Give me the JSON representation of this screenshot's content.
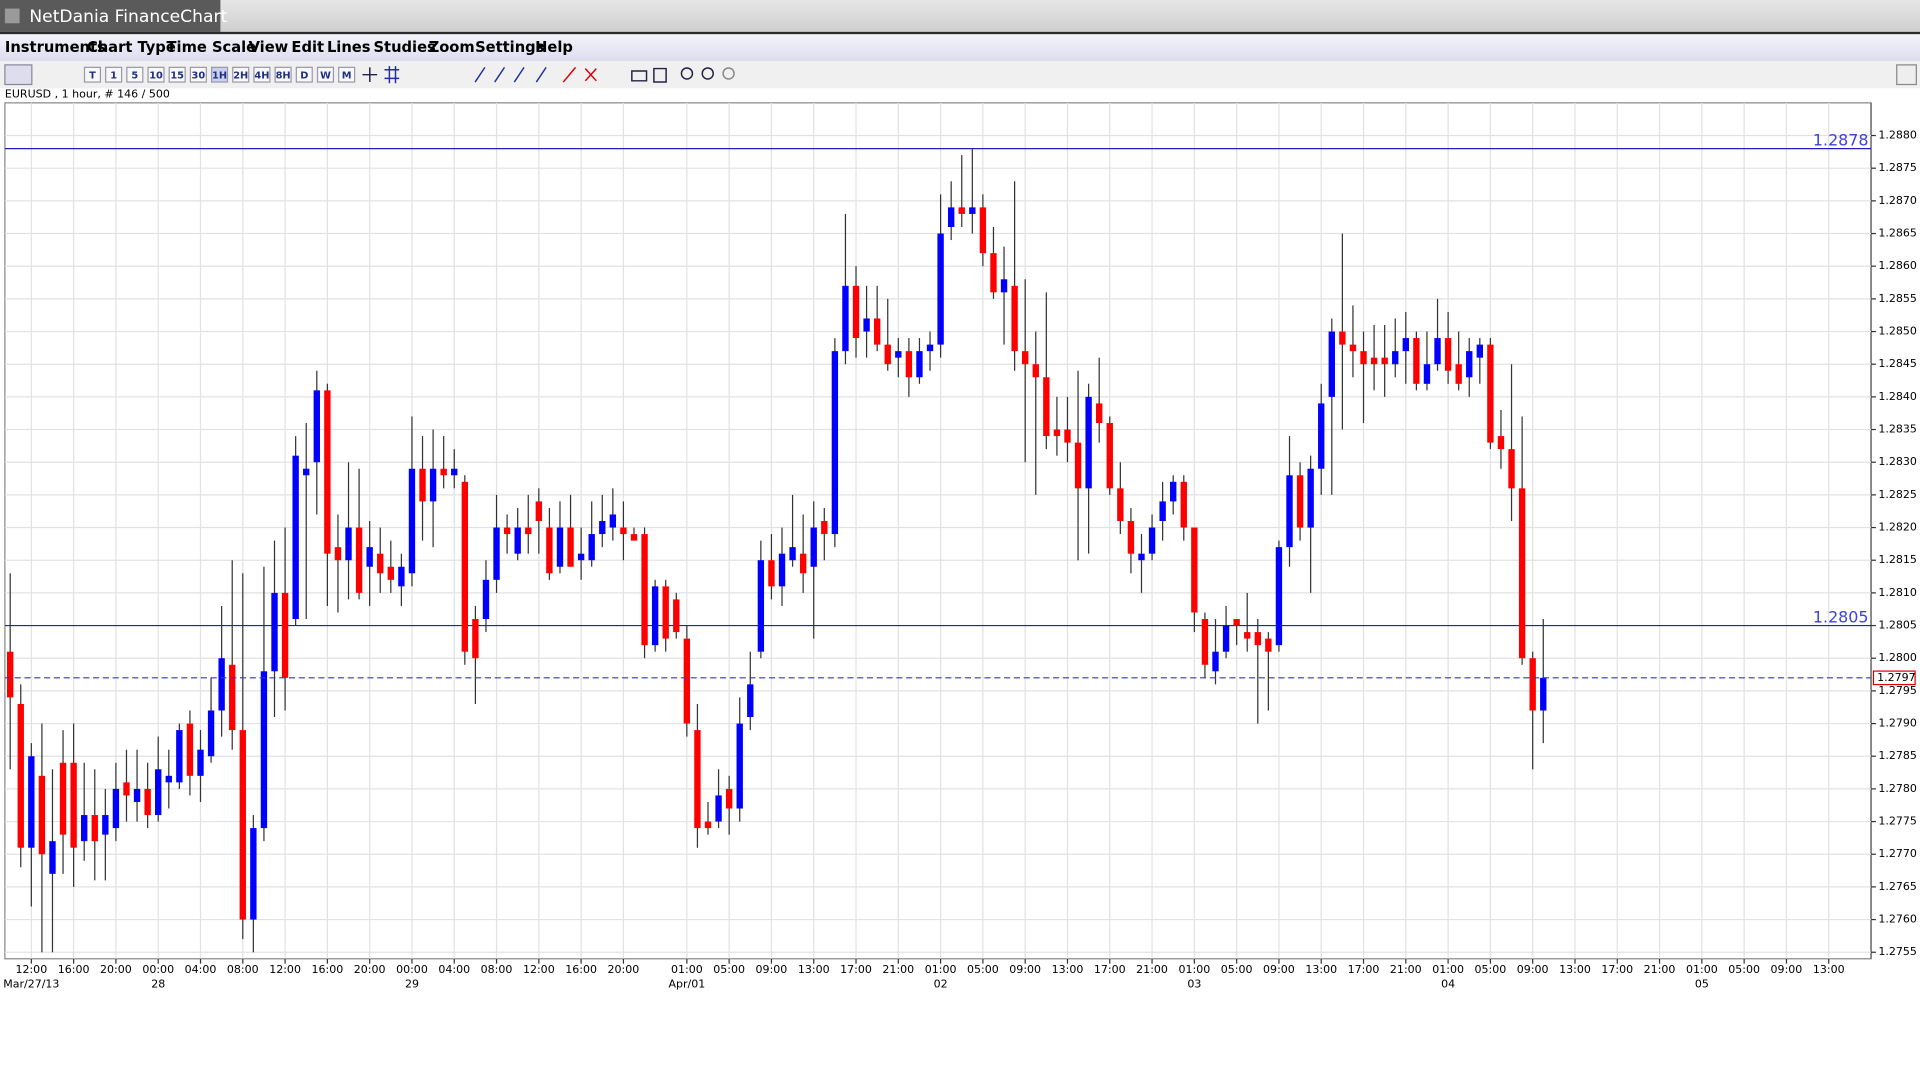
{
  "window": {
    "title": "NetDania FinanceChart"
  },
  "menu": [
    "Instruments",
    "Chart Type",
    "Time Scale",
    "View",
    "Edit",
    "Lines",
    "Studies",
    "Zoom",
    "Settings",
    "Help"
  ],
  "toolbar": [
    "T",
    "1",
    "5",
    "10",
    "15",
    "30",
    "1H",
    "2H",
    "4H",
    "8H",
    "D",
    "W",
    "M"
  ],
  "chart_data": {
    "type": "candlestick",
    "title": "EURUSD , 1 hour, # 146 / 500",
    "up_color": "#0000ff",
    "down_color": "#ff0000",
    "grid": true,
    "open": [
      1.2801,
      1.2793,
      1.2771,
      1.2782,
      1.2767,
      1.2784,
      1.2784,
      1.2772,
      1.2776,
      1.2773,
      1.2774,
      1.2781,
      1.2778,
      1.278,
      1.2776,
      1.2781,
      1.2781,
      1.279,
      1.2782,
      1.2785,
      1.2792,
      1.2799,
      1.2789,
      1.276,
      1.2774,
      1.2798,
      1.281,
      1.2806,
      1.2828,
      1.283,
      1.2841,
      1.2817,
      1.2815,
      1.282,
      1.2814,
      1.2816,
      1.2814,
      1.2811,
      1.2813,
      1.2829,
      1.2824,
      1.2829,
      1.2828,
      1.2827,
      1.2806,
      1.2806,
      1.2812,
      1.282,
      1.2816,
      1.282,
      1.2824,
      1.282,
      1.2814,
      1.282,
      1.2815,
      1.2815,
      1.2819,
      1.282,
      1.282,
      1.2819,
      1.2819,
      1.2802,
      1.2811,
      1.2809,
      1.2803,
      1.2789,
      1.2775,
      1.2775,
      1.278,
      1.2777,
      1.2791,
      1.2801,
      1.2815,
      1.2811,
      1.2815,
      1.2816,
      1.2814,
      1.2821,
      1.2819,
      1.2847,
      1.2857,
      1.285,
      1.2852,
      1.2848,
      1.2846,
      1.2847,
      1.2843,
      1.2847,
      1.2848,
      1.2866,
      1.2869,
      1.2868,
      1.2869,
      1.2862,
      1.2856,
      1.2857,
      1.2847,
      1.2845,
      1.2843,
      1.2835,
      1.2835,
      1.2833,
      1.2826,
      1.2839,
      1.2836,
      1.2826,
      1.2821,
      1.2815,
      1.2816,
      1.2821,
      1.2824,
      1.2827,
      1.282,
      1.2806,
      1.2798,
      1.2801,
      1.2806,
      1.2804,
      1.2804,
      1.2803,
      1.2802,
      1.2817,
      1.2828,
      1.282,
      1.2829,
      1.284,
      1.285,
      1.2848,
      1.2847,
      1.2846,
      1.2846,
      1.2845,
      1.2847,
      1.2849,
      1.2842,
      1.2845,
      1.2849,
      1.2845,
      1.2843,
      1.2846,
      1.2848,
      1.2834,
      1.2832,
      1.2826,
      1.28,
      1.2792
    ],
    "high": [
      1.2813,
      1.2796,
      1.2787,
      1.279,
      1.2783,
      1.2789,
      1.279,
      1.2784,
      1.2783,
      1.278,
      1.2784,
      1.2786,
      1.2786,
      1.2784,
      1.2788,
      1.2786,
      1.279,
      1.2792,
      1.2789,
      1.2797,
      1.2808,
      1.2815,
      1.2813,
      1.2776,
      1.2814,
      1.2818,
      1.282,
      1.2834,
      1.2836,
      1.2844,
      1.2842,
      1.2822,
      1.283,
      1.2829,
      1.2821,
      1.282,
      1.2818,
      1.2816,
      1.2837,
      1.2834,
      1.2835,
      1.2834,
      1.2832,
      1.2828,
      1.2808,
      1.2815,
      1.2825,
      1.2822,
      1.2823,
      1.2825,
      1.2826,
      1.2823,
      1.2824,
      1.2825,
      1.282,
      1.2824,
      1.2825,
      1.2826,
      1.2824,
      1.282,
      1.282,
      1.2812,
      1.2812,
      1.281,
      1.2805,
      1.2793,
      1.2778,
      1.2783,
      1.2782,
      1.2794,
      1.2801,
      1.2818,
      1.2819,
      1.282,
      1.2825,
      1.2822,
      1.2824,
      1.2823,
      1.2849,
      1.2868,
      1.286,
      1.2857,
      1.2857,
      1.2855,
      1.2849,
      1.2849,
      1.2849,
      1.285,
      1.2871,
      1.2873,
      1.2877,
      1.2878,
      1.2871,
      1.2866,
      1.2863,
      1.2873,
      1.2858,
      1.285,
      1.2856,
      1.284,
      1.284,
      1.2844,
      1.2842,
      1.2846,
      1.2837,
      1.283,
      1.2823,
      1.2819,
      1.2822,
      1.2827,
      1.2828,
      1.2828,
      1.282,
      1.2807,
      1.2806,
      1.2808,
      1.2806,
      1.281,
      1.2806,
      1.2804,
      1.2818,
      1.2834,
      1.283,
      1.2831,
      1.2842,
      1.2852,
      1.2865,
      1.2854,
      1.285,
      1.2851,
      1.2851,
      1.2852,
      1.2853,
      1.285,
      1.285,
      1.2855,
      1.2853,
      1.285,
      1.2849,
      1.2849,
      1.2849,
      1.2838,
      1.2845,
      1.2837,
      1.2801,
      1.2806
    ],
    "low": [
      1.2783,
      1.2768,
      1.2762,
      1.2755,
      1.2755,
      1.2767,
      1.2765,
      1.2769,
      1.2766,
      1.2766,
      1.2772,
      1.2775,
      1.2775,
      1.2774,
      1.2775,
      1.2777,
      1.278,
      1.2779,
      1.2778,
      1.2784,
      1.2788,
      1.2786,
      1.2757,
      1.2755,
      1.2772,
      1.2791,
      1.2792,
      1.2805,
      1.2806,
      1.2822,
      1.2808,
      1.2807,
      1.2809,
      1.2809,
      1.2808,
      1.281,
      1.281,
      1.2808,
      1.2811,
      1.2818,
      1.2817,
      1.2826,
      1.2826,
      1.2799,
      1.2793,
      1.2804,
      1.281,
      1.2816,
      1.2815,
      1.2816,
      1.2816,
      1.2812,
      1.2813,
      1.2814,
      1.2812,
      1.2814,
      1.2817,
      1.2818,
      1.2815,
      1.2818,
      1.28,
      1.2801,
      1.2801,
      1.2803,
      1.2788,
      1.2771,
      1.2773,
      1.2774,
      1.2773,
      1.2775,
      1.2789,
      1.28,
      1.2809,
      1.2808,
      1.2814,
      1.281,
      1.2803,
      1.2815,
      1.2817,
      1.2845,
      1.2846,
      1.2846,
      1.2847,
      1.2844,
      1.2843,
      1.284,
      1.2842,
      1.2844,
      1.2846,
      1.2864,
      1.2866,
      1.2865,
      1.286,
      1.2855,
      1.2848,
      1.2844,
      1.283,
      1.2825,
      1.2832,
      1.2831,
      1.283,
      1.2815,
      1.2816,
      1.2833,
      1.2825,
      1.2819,
      1.2813,
      1.281,
      1.2815,
      1.2818,
      1.2822,
      1.2818,
      1.2804,
      1.2797,
      1.2796,
      1.28,
      1.2802,
      1.2801,
      1.279,
      1.2792,
      1.2801,
      1.2814,
      1.2818,
      1.281,
      1.2825,
      1.2825,
      1.2835,
      1.2843,
      1.2836,
      1.2841,
      1.284,
      1.2843,
      1.2842,
      1.2841,
      1.2841,
      1.2844,
      1.2842,
      1.2841,
      1.284,
      1.2842,
      1.2832,
      1.2829,
      1.2821,
      1.2799,
      1.2783,
      1.2787
    ],
    "close": [
      1.2794,
      1.2771,
      1.2785,
      1.277,
      1.2772,
      1.2773,
      1.2771,
      1.2776,
      1.2772,
      1.2776,
      1.278,
      1.2779,
      1.278,
      1.2776,
      1.2783,
      1.2782,
      1.2789,
      1.2782,
      1.2786,
      1.2792,
      1.28,
      1.2789,
      1.276,
      1.2774,
      1.2798,
      1.281,
      1.2797,
      1.2831,
      1.2829,
      1.2841,
      1.2816,
      1.2815,
      1.282,
      1.281,
      1.2817,
      1.2813,
      1.2812,
      1.2814,
      1.2829,
      1.2824,
      1.2829,
      1.2828,
      1.2829,
      1.2801,
      1.28,
      1.2812,
      1.282,
      1.2819,
      1.282,
      1.2819,
      1.2821,
      1.2813,
      1.282,
      1.2814,
      1.2816,
      1.2819,
      1.2821,
      1.2822,
      1.2819,
      1.2818,
      1.2802,
      1.2811,
      1.2803,
      1.2804,
      1.279,
      1.2774,
      1.2774,
      1.2779,
      1.2777,
      1.279,
      1.2796,
      1.2815,
      1.2811,
      1.2816,
      1.2817,
      1.2813,
      1.282,
      1.2819,
      1.2847,
      1.2857,
      1.2849,
      1.2852,
      1.2848,
      1.2845,
      1.2847,
      1.2843,
      1.2847,
      1.2848,
      1.2865,
      1.2869,
      1.2868,
      1.2869,
      1.2862,
      1.2856,
      1.2858,
      1.2847,
      1.2845,
      1.2843,
      1.2834,
      1.2834,
      1.2833,
      1.2826,
      1.284,
      1.2836,
      1.2826,
      1.2821,
      1.2816,
      1.2816,
      1.282,
      1.2824,
      1.2827,
      1.282,
      1.2807,
      1.2799,
      1.2801,
      1.2805,
      1.2805,
      1.2803,
      1.2802,
      1.2801,
      1.2817,
      1.2828,
      1.282,
      1.2829,
      1.2839,
      1.285,
      1.2848,
      1.2847,
      1.2845,
      1.2845,
      1.2845,
      1.2847,
      1.2849,
      1.2842,
      1.2845,
      1.2849,
      1.2844,
      1.2842,
      1.2847,
      1.2848,
      1.2833,
      1.2832,
      1.2826,
      1.28,
      1.2792,
      1.2797
    ],
    "xlim": [
      -0.5,
      176
    ],
    "xticks": [
      {
        "value": 2,
        "label": "12:00"
      },
      {
        "value": 6,
        "label": "16:00"
      },
      {
        "value": 10,
        "label": "20:00"
      },
      {
        "value": 14,
        "label": "00:00"
      },
      {
        "value": 18,
        "label": "04:00"
      },
      {
        "value": 22,
        "label": "08:00"
      },
      {
        "value": 26,
        "label": "12:00"
      },
      {
        "value": 30,
        "label": "16:00"
      },
      {
        "value": 34,
        "label": "20:00"
      },
      {
        "value": 38,
        "label": "00:00"
      },
      {
        "value": 42,
        "label": "04:00"
      },
      {
        "value": 46,
        "label": "08:00"
      },
      {
        "value": 50,
        "label": "12:00"
      },
      {
        "value": 54,
        "label": "16:00"
      },
      {
        "value": 58,
        "label": "20:00"
      },
      {
        "value": 64,
        "label": "01:00"
      },
      {
        "value": 68,
        "label": "05:00"
      },
      {
        "value": 72,
        "label": "09:00"
      },
      {
        "value": 76,
        "label": "13:00"
      },
      {
        "value": 80,
        "label": "17:00"
      },
      {
        "value": 84,
        "label": "21:00"
      },
      {
        "value": 88,
        "label": "01:00"
      },
      {
        "value": 92,
        "label": "05:00"
      },
      {
        "value": 96,
        "label": "09:00"
      },
      {
        "value": 100,
        "label": "13:00"
      },
      {
        "value": 104,
        "label": "17:00"
      },
      {
        "value": 108,
        "label": "21:00"
      },
      {
        "value": 112,
        "label": "01:00"
      },
      {
        "value": 116,
        "label": "05:00"
      },
      {
        "value": 120,
        "label": "09:00"
      },
      {
        "value": 124,
        "label": "13:00"
      },
      {
        "value": 128,
        "label": "17:00"
      },
      {
        "value": 132,
        "label": "21:00"
      },
      {
        "value": 136,
        "label": "01:00"
      },
      {
        "value": 140,
        "label": "05:00"
      },
      {
        "value": 144,
        "label": "09:00"
      },
      {
        "value": 148,
        "label": "13:00"
      },
      {
        "value": 152,
        "label": "17:00"
      },
      {
        "value": 156,
        "label": "21:00"
      },
      {
        "value": 160,
        "label": "01:00"
      },
      {
        "value": 164,
        "label": "05:00"
      },
      {
        "value": 168,
        "label": "09:00"
      },
      {
        "value": 172,
        "label": "13:00"
      }
    ],
    "date_labels": [
      {
        "value": 2,
        "label": "Mar/27/13"
      },
      {
        "value": 14,
        "label": "28"
      },
      {
        "value": 38,
        "label": "29"
      },
      {
        "value": 64,
        "label": "Apr/01"
      },
      {
        "value": 88,
        "label": "02"
      },
      {
        "value": 112,
        "label": "03"
      },
      {
        "value": 136,
        "label": "04"
      },
      {
        "value": 160,
        "label": "05"
      }
    ],
    "ylim": [
      1.2754,
      1.2885
    ],
    "yticks": [
      1.2755,
      {
        "value": 1.276,
        "label": "1.2760"
      },
      1.2765,
      {
        "value": 1.277,
        "label": "1.2770"
      },
      1.2775,
      {
        "value": 1.278,
        "label": "1.2780"
      },
      1.2785,
      {
        "value": 1.279,
        "label": "1.2790"
      },
      1.2795,
      {
        "value": 1.28,
        "label": "1.2800"
      },
      1.2805,
      {
        "value": 1.281,
        "label": "1.2810"
      },
      1.2815,
      {
        "value": 1.282,
        "label": "1.2820"
      },
      1.2825,
      {
        "value": 1.283,
        "label": "1.2830"
      },
      1.2835,
      {
        "value": 1.284,
        "label": "1.2840"
      },
      1.2845,
      {
        "value": 1.285,
        "label": "1.2850"
      },
      1.2855,
      {
        "value": 1.286,
        "label": "1.2860"
      },
      1.2865,
      {
        "value": 1.287,
        "label": "1.2870"
      },
      1.2875,
      {
        "value": 1.288,
        "label": "1.2880"
      }
    ],
    "hlines": [
      1.2878,
      1.2805
    ],
    "last_price": 1.2797
  }
}
